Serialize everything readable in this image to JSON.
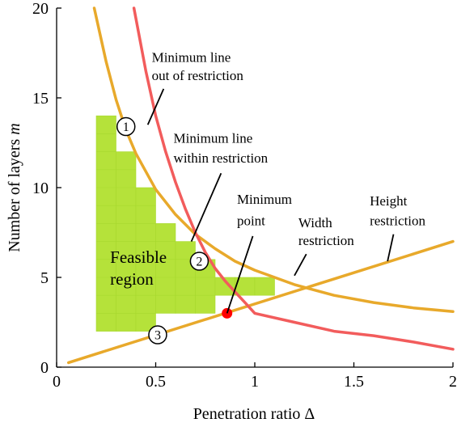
{
  "chart_data": {
    "type": "line",
    "xlabel": "Penetration ratio Δ",
    "ylabel_main": "Number of layers ",
    "ylabel_italic": "m",
    "xlim": [
      0,
      2
    ],
    "ylim": [
      0,
      20
    ],
    "xticks": [
      0,
      0.5,
      1,
      1.5,
      2
    ],
    "xtick_labels": [
      "0",
      "0.5",
      "1",
      "1.5",
      "2"
    ],
    "yticks": [
      0,
      5,
      10,
      15,
      20
    ],
    "ytick_labels": [
      "0",
      "5",
      "10",
      "15",
      "20"
    ],
    "grid": false,
    "colors": {
      "width_restriction": "#E8A92B",
      "height_restriction": "#E8A92B",
      "minimum_line": "#F25C5C",
      "feasible_region": "#B5E23A",
      "feasible_region_cell": "#A8D92E",
      "minimum_point": "#FF0000"
    },
    "series": [
      {
        "key": "width_restriction",
        "x": [
          0.19,
          0.25,
          0.3,
          0.35,
          0.4,
          0.5,
          0.6,
          0.7,
          0.8,
          0.9,
          1.0,
          1.2,
          1.4,
          1.6,
          1.8,
          2.0
        ],
        "y": [
          20.0,
          17.0,
          14.9,
          13.2,
          11.9,
          9.9,
          8.5,
          7.4,
          6.6,
          5.9,
          5.4,
          4.6,
          4.0,
          3.6,
          3.3,
          3.1
        ]
      },
      {
        "key": "height_restriction",
        "x": [
          0.06,
          2.0
        ],
        "y": [
          0.25,
          7.0
        ]
      },
      {
        "key": "minimum_line",
        "x": [
          0.39,
          0.45,
          0.5,
          0.55,
          0.6,
          0.65,
          0.7,
          0.75,
          0.8,
          0.85,
          0.9,
          0.95,
          1.0,
          1.2,
          1.4,
          1.6,
          1.8,
          2.0
        ],
        "y": [
          20.0,
          16.5,
          14.0,
          12.0,
          10.3,
          8.8,
          7.5,
          6.4,
          5.5,
          4.8,
          4.2,
          3.6,
          3.0,
          2.5,
          2.0,
          1.75,
          1.4,
          1.0
        ]
      }
    ],
    "feasible_region": {
      "cell_width": 0.1,
      "columns": [
        {
          "x0": 0.2,
          "y0": 2,
          "y1": 14
        },
        {
          "x0": 0.3,
          "y0": 2,
          "y1": 12
        },
        {
          "x0": 0.4,
          "y0": 2,
          "y1": 10
        },
        {
          "x0": 0.5,
          "y0": 3,
          "y1": 8
        },
        {
          "x0": 0.6,
          "y0": 3,
          "y1": 7
        },
        {
          "x0": 0.7,
          "y0": 3,
          "y1": 6
        },
        {
          "x0": 0.8,
          "y0": 4,
          "y1": 5
        },
        {
          "x0": 0.9,
          "y0": 4,
          "y1": 5
        },
        {
          "x0": 1.0,
          "y0": 4,
          "y1": 5
        }
      ]
    },
    "minimum_point": {
      "x": 0.86,
      "y": 3.0
    },
    "markers": [
      {
        "label": "1",
        "x": 0.35,
        "y": 13.4
      },
      {
        "label": "2",
        "x": 0.72,
        "y": 5.9
      },
      {
        "label": "3",
        "x": 0.51,
        "y": 1.8
      }
    ],
    "annotations": {
      "min_out": {
        "lines": [
          "Minimum line",
          "out of restriction"
        ],
        "text_x": 0.48,
        "text_y": [
          17.0,
          16.0
        ],
        "leader": [
          [
            0.54,
            15.5
          ],
          [
            0.46,
            13.5
          ]
        ]
      },
      "min_within": {
        "lines": [
          "Minimum line",
          "within restriction"
        ],
        "text_x": 0.59,
        "text_y": [
          12.5,
          11.4
        ],
        "leader": [
          [
            0.83,
            10.8
          ],
          [
            0.68,
            7.0
          ]
        ]
      },
      "min_point": {
        "lines": [
          "Minimum",
          "point"
        ],
        "text_x": 0.91,
        "text_y": [
          9.1,
          7.9
        ],
        "leader": [
          [
            0.99,
            7.3
          ],
          [
            0.86,
            3.0
          ]
        ]
      },
      "width_label": {
        "lines": [
          "Width",
          "restriction"
        ],
        "text_x": 1.22,
        "text_y": [
          7.8,
          6.8
        ],
        "leader": [
          [
            1.26,
            6.3
          ],
          [
            1.2,
            5.1
          ]
        ]
      },
      "height_label": {
        "lines": [
          "Height",
          "restriction"
        ],
        "text_x": 1.58,
        "text_y": [
          9.0,
          7.9
        ],
        "leader": [
          [
            1.7,
            7.4
          ],
          [
            1.67,
            5.9
          ]
        ]
      },
      "feasible_label": {
        "lines": [
          "Feasible",
          "region"
        ],
        "text_x": 0.27,
        "text_y": [
          5.8,
          4.6
        ]
      }
    }
  }
}
